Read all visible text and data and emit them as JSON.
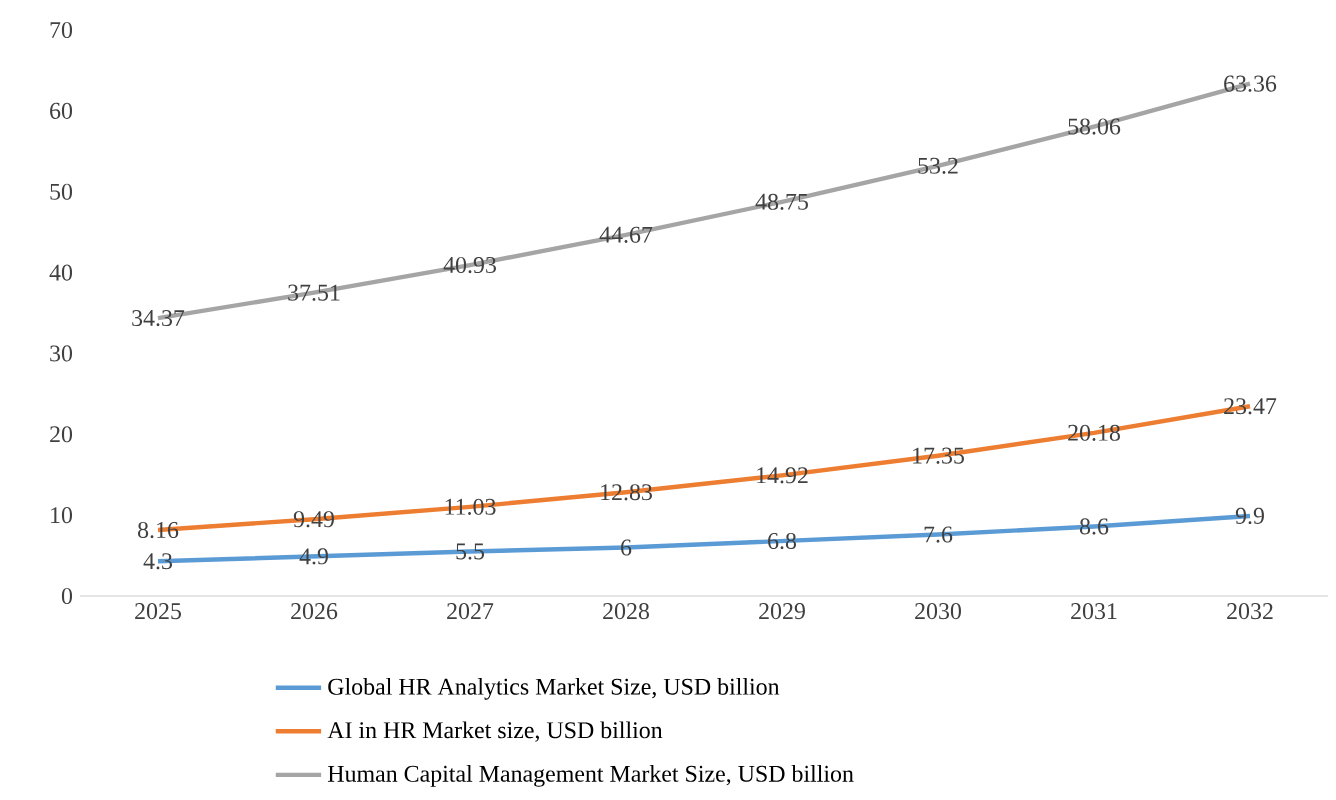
{
  "chart_data": {
    "type": "line",
    "categories": [
      "2025",
      "2026",
      "2027",
      "2028",
      "2029",
      "2030",
      "2031",
      "2032"
    ],
    "series": [
      {
        "name": "Global HR Analytics Market Size, USD billion",
        "color": "#5b9bd5",
        "values": [
          4.3,
          4.9,
          5.5,
          6,
          6.8,
          7.6,
          8.6,
          9.9
        ]
      },
      {
        "name": "AI in HR Market size, USD billion",
        "color": "#ed7d31",
        "values": [
          8.16,
          9.49,
          11.03,
          12.83,
          14.92,
          17.35,
          20.18,
          23.47
        ]
      },
      {
        "name": "Human Capital Management Market Size, USD billion",
        "color": "#a5a5a5",
        "values": [
          34.37,
          37.51,
          40.93,
          44.67,
          48.75,
          53.2,
          58.06,
          63.36
        ]
      }
    ],
    "ylim": [
      0,
      70
    ],
    "yticks": [
      0,
      10,
      20,
      30,
      40,
      50,
      60,
      70
    ],
    "data_labels": true,
    "legend": "bottom",
    "marker": "none",
    "line_style": "solid"
  }
}
